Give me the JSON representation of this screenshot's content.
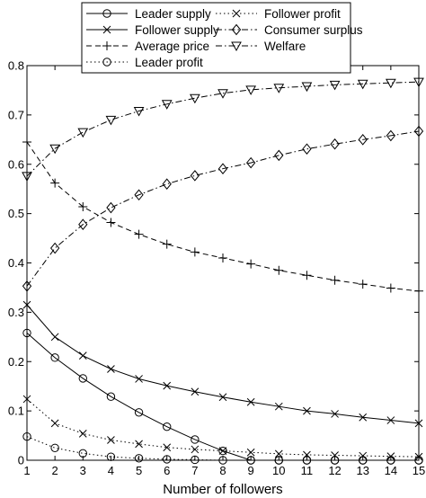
{
  "chart_data": {
    "type": "line",
    "xlabel": "Number of followers",
    "ylabel": "",
    "title": "",
    "xlim": [
      1,
      15
    ],
    "ylim": [
      0,
      0.8
    ],
    "x": [
      1,
      2,
      3,
      4,
      5,
      6,
      7,
      8,
      9,
      10,
      11,
      12,
      13,
      14,
      15
    ],
    "x_ticks": [
      "1",
      "2",
      "3",
      "4",
      "5",
      "6",
      "7",
      "8",
      "9",
      "10",
      "11",
      "12",
      "13",
      "14",
      "15"
    ],
    "y_ticks": [
      "0",
      "0.1",
      "0.2",
      "0.3",
      "0.4",
      "0.5",
      "0.6",
      "0.7",
      "0.8"
    ],
    "grid": false,
    "legend_position": "top-center",
    "series": [
      {
        "name": "Leader  supply",
        "line": "solid",
        "marker": "circle",
        "values": [
          0.258,
          0.208,
          0.166,
          0.129,
          0.097,
          0.068,
          0.042,
          0.019,
          0.0,
          0.0,
          0.0,
          0.0,
          0.0,
          0.0,
          0.0
        ]
      },
      {
        "name": "Follower supply",
        "line": "solid",
        "marker": "x",
        "values": [
          0.315,
          0.25,
          0.212,
          0.185,
          0.165,
          0.151,
          0.139,
          0.128,
          0.118,
          0.109,
          0.1,
          0.094,
          0.087,
          0.081,
          0.075
        ]
      },
      {
        "name": "Average price",
        "line": "dashed",
        "marker": "plus",
        "values": [
          0.645,
          0.562,
          0.514,
          0.482,
          0.458,
          0.438,
          0.422,
          0.41,
          0.398,
          0.385,
          0.375,
          0.365,
          0.357,
          0.349,
          0.343
        ]
      },
      {
        "name": "Leader profit",
        "line": "dotted",
        "marker": "circle",
        "values": [
          0.048,
          0.025,
          0.014,
          0.007,
          0.004,
          0.002,
          0.001,
          0.0,
          0.0,
          0.0,
          0.0,
          0.0,
          0.0,
          0.0,
          0.0
        ]
      },
      {
        "name": "Follower profit",
        "line": "dotted",
        "marker": "x",
        "values": [
          0.124,
          0.075,
          0.054,
          0.041,
          0.033,
          0.026,
          0.022,
          0.019,
          0.016,
          0.013,
          0.011,
          0.01,
          0.009,
          0.008,
          0.007
        ]
      },
      {
        "name": "Consumer surplus",
        "line": "dashdot",
        "marker": "diamond",
        "values": [
          0.353,
          0.43,
          0.478,
          0.512,
          0.538,
          0.56,
          0.577,
          0.591,
          0.603,
          0.618,
          0.631,
          0.641,
          0.65,
          0.658,
          0.667
        ]
      },
      {
        "name": "Welfare",
        "line": "dashdot",
        "marker": "triangle-down",
        "values": [
          0.576,
          0.632,
          0.665,
          0.69,
          0.708,
          0.722,
          0.734,
          0.744,
          0.751,
          0.755,
          0.758,
          0.761,
          0.763,
          0.765,
          0.767
        ]
      }
    ]
  }
}
